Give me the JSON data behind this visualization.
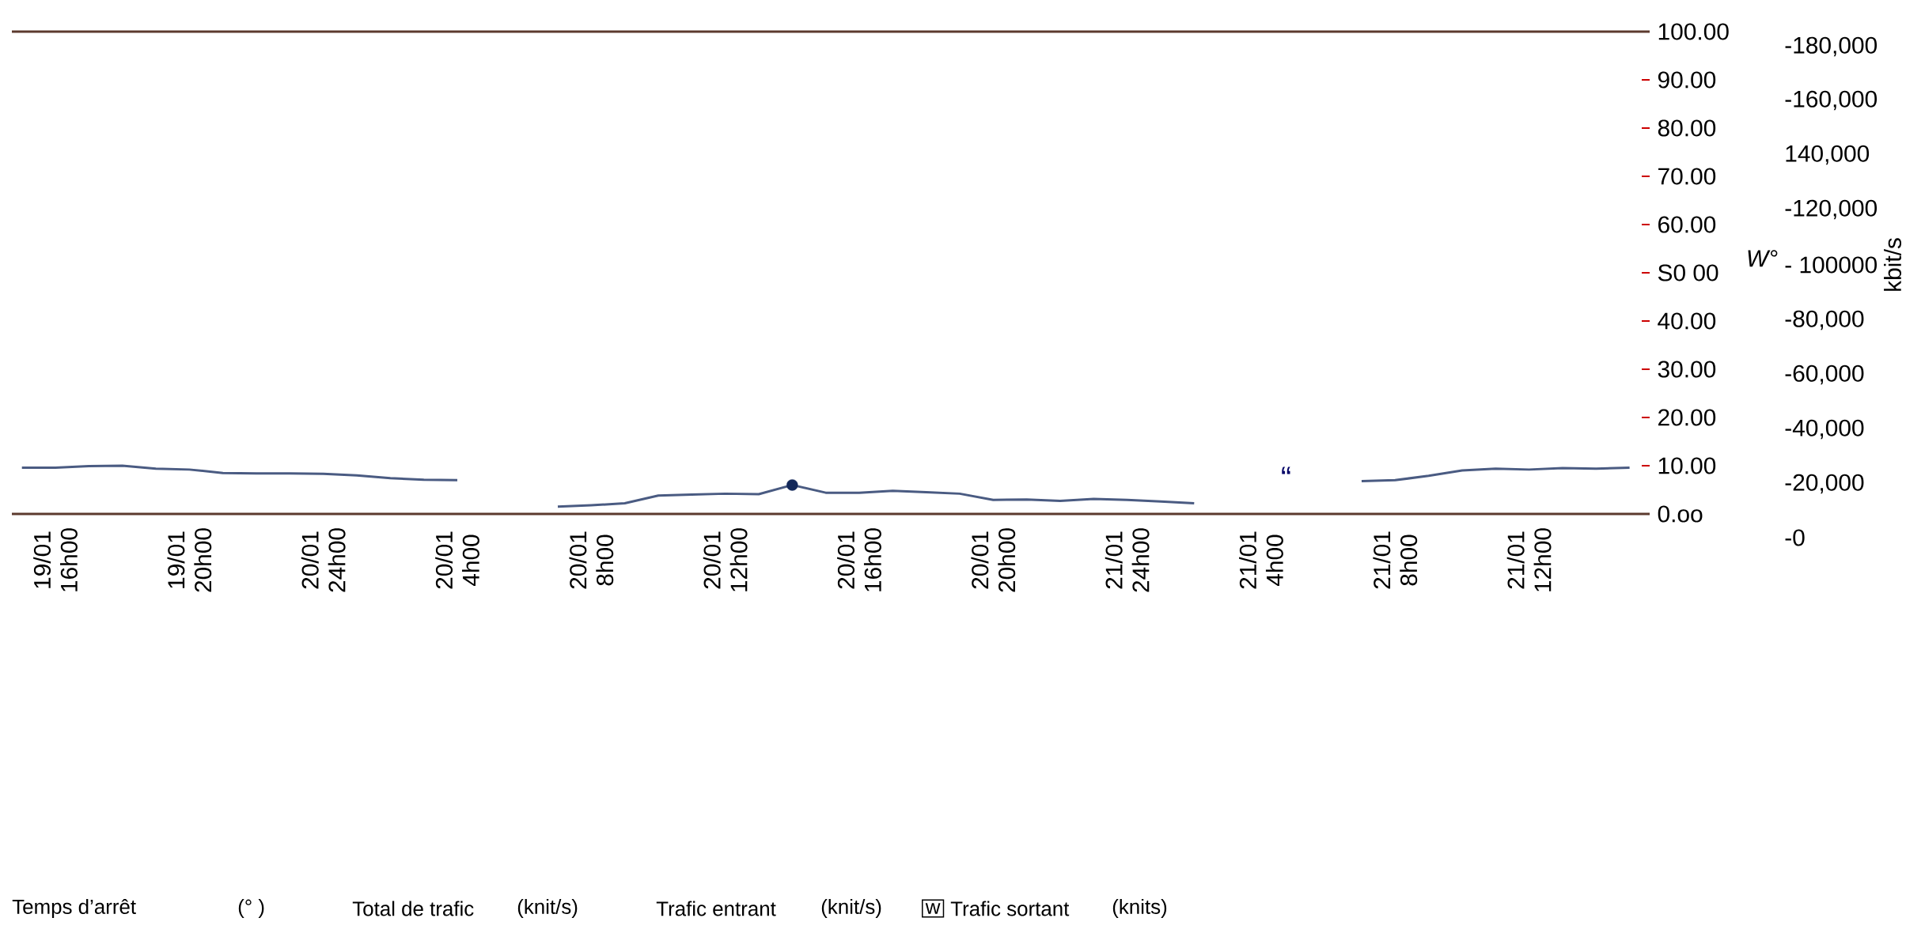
{
  "chart_data": {
    "type": "line",
    "ylabel": "W°",
    "categories": [
      null,
      "19/01 16h00",
      null,
      null,
      null,
      "19/01 20h00",
      null,
      null,
      null,
      "20/01 24h00",
      null,
      null,
      null,
      "20/01 4h00",
      null,
      null,
      null,
      "20/01 8h00",
      null,
      null,
      null,
      "20/01 12h00",
      null,
      null,
      null,
      "20/01 16h00",
      null,
      null,
      null,
      "20/01 20h00",
      null,
      null,
      null,
      "21/01 24h00",
      null,
      null,
      null,
      "21/01 4h00",
      null,
      null,
      null,
      "21/01 8h00",
      null,
      null,
      null,
      "21/01 12h00",
      null,
      null,
      null
    ],
    "ylim": [
      0,
      100
    ],
    "yticks": [
      {
        "value": 100,
        "label": "100.00"
      },
      {
        "value": 90,
        "label": "90.00"
      },
      {
        "value": 80,
        "label": "80.00"
      },
      {
        "value": 70,
        "label": "70.00"
      },
      {
        "value": 60,
        "label": "60.00"
      },
      {
        "value": 50,
        "label": "S0 00"
      },
      {
        "value": 40,
        "label": "40.00"
      },
      {
        "value": 30,
        "label": "30.00"
      },
      {
        "value": 20,
        "label": "20.00"
      },
      {
        "value": 10,
        "label": "10.00"
      },
      {
        "value": 0,
        "label": "0.oo"
      }
    ],
    "series": [
      {
        "color": "#4a5b82",
        "values": [
          9.6,
          9.6,
          9.9,
          10.0,
          9.4,
          9.2,
          8.5,
          8.4,
          8.4,
          8.3,
          8.0,
          7.4,
          7.1,
          7.0,
          null,
          null,
          1.5,
          1.8,
          2.2,
          3.8,
          4.0,
          4.2,
          4.1,
          6.0,
          4.4,
          4.4,
          4.8,
          4.5,
          4.2,
          2.9,
          3.0,
          2.7,
          3.1,
          2.9,
          2.6,
          2.2,
          null,
          null,
          null,
          null,
          6.8,
          7.0,
          7.9,
          9.0,
          9.4,
          9.2,
          9.5,
          9.4,
          9.6
        ]
      },
      {
        "type": "scatter",
        "color": "#13285a",
        "values": [
          null,
          null,
          null,
          null,
          null,
          null,
          null,
          null,
          null,
          null,
          null,
          null,
          null,
          null,
          null,
          null,
          null,
          null,
          null,
          null,
          null,
          null,
          null,
          6.0,
          null,
          null,
          null,
          null,
          null,
          null,
          null,
          null,
          null,
          null,
          null,
          null,
          null,
          null,
          null,
          null,
          null,
          null,
          null,
          null,
          null,
          null,
          null,
          null,
          null
        ]
      }
    ],
    "annotations": [
      "“",
      "Temps d’arrêt",
      "(° )",
      "Total de trafic",
      "(knit/s)",
      "Trafic entrant",
      "(knit/s)",
      "w",
      "Trafic sortant",
      "(knits)",
      "-180,000",
      "-160,000",
      "140,000",
      "-120,000",
      "- 100000",
      "-80,000",
      "-60,000",
      "-40,000",
      "-20,000",
      "-0",
      "kbit/s"
    ]
  }
}
